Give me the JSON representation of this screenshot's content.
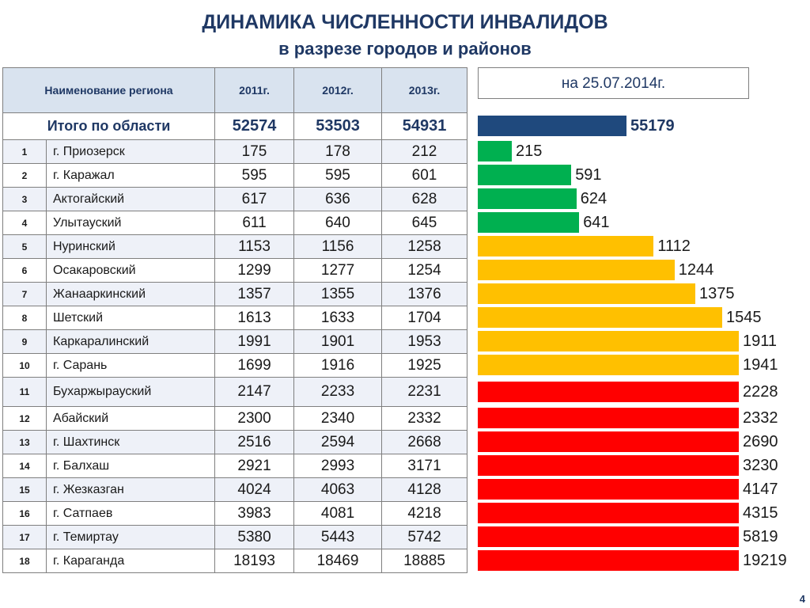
{
  "title": "ДИНАМИКА ЧИСЛЕННОСТИ ИНВАЛИДОВ",
  "subtitle": "в разрезе городов и районов",
  "date_label": "на 25.07.2014г.",
  "page_number": "4",
  "table": {
    "headers": [
      "Наименование региона",
      "2011г.",
      "2012г.",
      "2013г."
    ],
    "total": {
      "name": "Итого по области",
      "y2011": "52574",
      "y2012": "53503",
      "y2013": "54931"
    },
    "rows": [
      {
        "num": "1",
        "name": "г. Приозерск",
        "y2011": "175",
        "y2012": "178",
        "y2013": "212"
      },
      {
        "num": "2",
        "name": "г. Каражал",
        "y2011": "595",
        "y2012": "595",
        "y2013": "601"
      },
      {
        "num": "3",
        "name": "Актогайский",
        "y2011": "617",
        "y2012": "636",
        "y2013": "628"
      },
      {
        "num": "4",
        "name": "Улытауский",
        "y2011": "611",
        "y2012": "640",
        "y2013": "645"
      },
      {
        "num": "5",
        "name": "Нуринский",
        "y2011": "1153",
        "y2012": "1156",
        "y2013": "1258"
      },
      {
        "num": "6",
        "name": "Осакаровский",
        "y2011": "1299",
        "y2012": "1277",
        "y2013": "1254"
      },
      {
        "num": "7",
        "name": "Жанааркинский",
        "y2011": "1357",
        "y2012": "1355",
        "y2013": "1376"
      },
      {
        "num": "8",
        "name": "Шетский",
        "y2011": "1613",
        "y2012": "1633",
        "y2013": "1704"
      },
      {
        "num": "9",
        "name": "Каркаралинский",
        "y2011": "1991",
        "y2012": "1901",
        "y2013": "1953"
      },
      {
        "num": "10",
        "name": "г. Сарань",
        "y2011": "1699",
        "y2012": "1916",
        "y2013": "1925"
      },
      {
        "num": "11",
        "name": "Бухаржырауский",
        "y2011": "2147",
        "y2012": "2233",
        "y2013": "2231"
      },
      {
        "num": "12",
        "name": "Абайский",
        "y2011": "2300",
        "y2012": "2340",
        "y2013": "2332"
      },
      {
        "num": "13",
        "name": "г. Шахтинск",
        "y2011": "2516",
        "y2012": "2594",
        "y2013": "2668"
      },
      {
        "num": "14",
        "name": "г. Балхаш",
        "y2011": "2921",
        "y2012": "2993",
        "y2013": "3171"
      },
      {
        "num": "15",
        "name": "г. Жезказган",
        "y2011": "4024",
        "y2012": "4063",
        "y2013": "4128"
      },
      {
        "num": "16",
        "name": "г. Сатпаев",
        "y2011": "3983",
        "y2012": "4081",
        "y2013": "4218"
      },
      {
        "num": "17",
        "name": "г. Темиртау",
        "y2011": "5380",
        "y2012": "5443",
        "y2013": "5742"
      },
      {
        "num": "18",
        "name": "г. Караганда",
        "y2011": "18193",
        "y2012": "18469",
        "y2013": "18885"
      }
    ]
  },
  "colors": {
    "total": "#1f497d",
    "green": "#00b050",
    "yellow": "#ffc000",
    "red": "#ff0000"
  },
  "chart_data": {
    "type": "bar",
    "orientation": "horizontal",
    "total": {
      "value": 55179,
      "label": "55179",
      "color": "total"
    },
    "values": [
      215,
      591,
      624,
      641,
      1112,
      1244,
      1375,
      1545,
      1911,
      1941,
      2228,
      2332,
      2690,
      3230,
      4147,
      4315,
      5819,
      19219
    ],
    "labels": [
      "215",
      "591",
      "624",
      "641",
      "1112",
      "1244",
      "1375",
      "1545",
      "1911",
      "1941",
      "2228",
      "2332",
      "2690",
      "3230",
      "4147",
      "4315",
      "5819",
      "19219"
    ],
    "bar_colors": [
      "green",
      "green",
      "green",
      "green",
      "yellow",
      "yellow",
      "yellow",
      "yellow",
      "yellow",
      "yellow",
      "red",
      "red",
      "red",
      "red",
      "red",
      "red",
      "red",
      "red"
    ]
  }
}
